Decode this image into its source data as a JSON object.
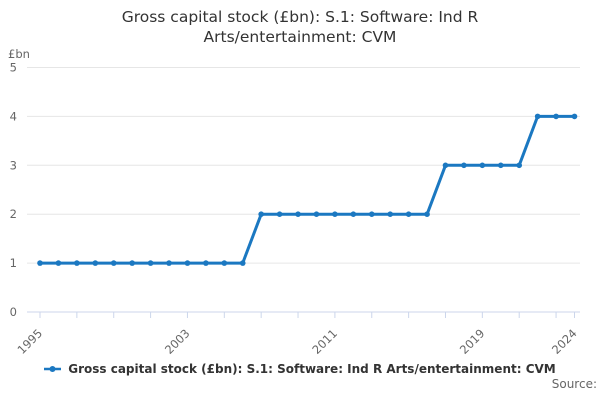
{
  "title": {
    "line1": "Gross capital stock (£bn): S.1: Software: Ind R",
    "line2": "Arts/entertainment: CVM"
  },
  "y_axis": {
    "unit": "£bn",
    "ticks": [
      0,
      1,
      2,
      3,
      4,
      5
    ]
  },
  "x_axis": {
    "labeled_years": [
      1995,
      2003,
      2011,
      2019,
      2024
    ],
    "tick_step_years": 2
  },
  "legend": {
    "label": "Gross capital stock (£bn): S.1: Software: Ind R Arts/entertainment: CVM"
  },
  "source": {
    "label": "Source:"
  },
  "colors": {
    "line": "#1b78c1",
    "grid": "#e6e6e6",
    "axis": "#ccd6eb",
    "tick_label": "#666666",
    "title": "#333333",
    "legend_text": "#333333",
    "source_text": "#666666"
  },
  "chart_data": {
    "type": "line",
    "title": "Gross capital stock (£bn): S.1: Software: Ind R Arts/entertainment: CVM",
    "xlabel": "",
    "ylabel": "£bn",
    "ylim": [
      0,
      5
    ],
    "xlim": [
      1995,
      2024
    ],
    "grid": true,
    "legend_position": "bottom-center",
    "series": [
      {
        "name": "Gross capital stock (£bn): S.1: Software: Ind R Arts/entertainment: CVM",
        "x": [
          1995,
          1996,
          1997,
          1998,
          1999,
          2000,
          2001,
          2002,
          2003,
          2004,
          2005,
          2006,
          2007,
          2008,
          2009,
          2010,
          2011,
          2012,
          2013,
          2014,
          2015,
          2016,
          2017,
          2018,
          2019,
          2020,
          2021,
          2022,
          2023,
          2024
        ],
        "values": [
          1,
          1,
          1,
          1,
          1,
          1,
          1,
          1,
          1,
          1,
          1,
          1,
          2,
          2,
          2,
          2,
          2,
          2,
          2,
          2,
          2,
          2,
          3,
          3,
          3,
          3,
          3,
          4,
          4,
          4
        ]
      }
    ]
  }
}
